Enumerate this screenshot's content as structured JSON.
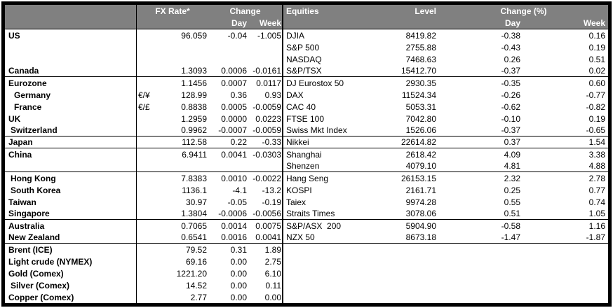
{
  "colors": {
    "header_bg": "#808080",
    "header_fg": "#ffffff",
    "border": "#000000"
  },
  "fx": {
    "header": {
      "rate": "FX Rate*",
      "change": "Change",
      "day": "Day",
      "week": "Week"
    },
    "rows": [
      {
        "label": "US",
        "sym": "",
        "rate": "96.059",
        "day": "-0.04",
        "week": "-1.005",
        "indent": 0,
        "end": false
      },
      {
        "label": "",
        "sym": "",
        "rate": "",
        "day": "",
        "week": "",
        "indent": 0,
        "end": false
      },
      {
        "label": "",
        "sym": "",
        "rate": "",
        "day": "",
        "week": "",
        "indent": 0,
        "end": false
      },
      {
        "label": "Canada",
        "sym": "",
        "rate": "1.3093",
        "day": "0.0006",
        "week": "-0.0161",
        "indent": 0,
        "end": true
      },
      {
        "label": "Eurozone",
        "sym": "",
        "rate": "1.1456",
        "day": "0.0007",
        "week": "0.0117",
        "indent": 0,
        "end": false
      },
      {
        "label": "Germany",
        "sym": "€/¥",
        "rate": "128.99",
        "day": "0.36",
        "week": "0.93",
        "indent": 1,
        "end": false
      },
      {
        "label": "France",
        "sym": "€/£",
        "rate": "0.8838",
        "day": "0.0005",
        "week": "-0.0059",
        "indent": 1,
        "end": false
      },
      {
        "label": "UK",
        "sym": "",
        "rate": "1.2959",
        "day": "0.0000",
        "week": "0.0223",
        "indent": 0,
        "end": false
      },
      {
        "label": "Switzerland",
        "sym": "",
        "rate": "0.9962",
        "day": "-0.0007",
        "week": "-0.0059",
        "indent": 0.5,
        "end": true
      },
      {
        "label": "Japan",
        "sym": "",
        "rate": "112.58",
        "day": "0.22",
        "week": "-0.33",
        "indent": 0,
        "end": true
      },
      {
        "label": "China",
        "sym": "",
        "rate": "6.9411",
        "day": "0.0041",
        "week": "-0.0303",
        "indent": 0,
        "end": false
      },
      {
        "label": "",
        "sym": "",
        "rate": "",
        "day": "",
        "week": "",
        "indent": 0,
        "end": true
      },
      {
        "label": "Hong Kong",
        "sym": "",
        "rate": "7.8383",
        "day": "0.0010",
        "week": "-0.0022",
        "indent": 0.5,
        "end": false
      },
      {
        "label": "South Korea",
        "sym": "",
        "rate": "1136.1",
        "day": "-4.1",
        "week": "-13.2",
        "indent": 0.5,
        "end": false
      },
      {
        "label": "Taiwan",
        "sym": "",
        "rate": "30.97",
        "day": "-0.05",
        "week": "-0.19",
        "indent": 0,
        "end": false
      },
      {
        "label": "Singapore",
        "sym": "",
        "rate": "1.3804",
        "day": "-0.0006",
        "week": "-0.0056",
        "indent": 0,
        "end": true
      },
      {
        "label": "Australia",
        "sym": "",
        "rate": "0.7065",
        "day": "0.0014",
        "week": "0.0075",
        "indent": 0,
        "end": false
      },
      {
        "label": "New Zealand",
        "sym": "",
        "rate": "0.6541",
        "day": "0.0016",
        "week": "0.0041",
        "indent": 0,
        "end": true
      },
      {
        "label": "Brent (ICE)",
        "sym": "",
        "rate": "79.52",
        "day": "0.31",
        "week": "1.89",
        "indent": 0,
        "end": false
      },
      {
        "label": "Light crude (NYMEX)",
        "sym": "",
        "rate": "69.16",
        "day": "0.00",
        "week": "2.75",
        "indent": 0,
        "end": false
      },
      {
        "label": "Gold (Comex)",
        "sym": "",
        "rate": "1221.20",
        "day": "0.00",
        "week": "6.10",
        "indent": 0,
        "end": false
      },
      {
        "label": "Silver (Comex)",
        "sym": "",
        "rate": "14.52",
        "day": "0.00",
        "week": "0.11",
        "indent": 0.5,
        "end": false
      },
      {
        "label": "Copper (Comex)",
        "sym": "",
        "rate": "2.77",
        "day": "0.00",
        "week": "0.00",
        "indent": 0,
        "end": false
      }
    ]
  },
  "equities": {
    "header": {
      "title": "Equities",
      "level": "Level",
      "change": "Change (%)",
      "day": "Day",
      "week": "Week"
    },
    "rows": [
      {
        "label": "DJIA",
        "level": "8419.82",
        "day": "-0.38",
        "week": "0.16",
        "end": false
      },
      {
        "label": "S&P 500",
        "level": "2755.88",
        "day": "-0.43",
        "week": "0.19",
        "end": false
      },
      {
        "label": "NASDAQ",
        "level": "7468.63",
        "day": "0.26",
        "week": "0.51",
        "end": false
      },
      {
        "label": "S&P/TSX",
        "level": "15412.70",
        "day": "-0.37",
        "week": "0.02",
        "end": true
      },
      {
        "label": "DJ Eurostox 50",
        "level": "2930.35",
        "day": "-0.35",
        "week": "0.60",
        "end": false
      },
      {
        "label": "DAX",
        "level": "11524.34",
        "day": "-0.26",
        "week": "-0.77",
        "end": false
      },
      {
        "label": "CAC 40",
        "level": "5053.31",
        "day": "-0.62",
        "week": "-0.82",
        "end": false
      },
      {
        "label": "FTSE 100",
        "level": "7042.80",
        "day": "-0.10",
        "week": "0.19",
        "end": false
      },
      {
        "label": "Swiss Mkt Index",
        "level": "1526.06",
        "day": "-0.37",
        "week": "-0.65",
        "end": true
      },
      {
        "label": "Nikkei",
        "level": "22614.82",
        "day": "0.37",
        "week": "1.54",
        "end": true
      },
      {
        "label": "Shanghai",
        "level": "2618.42",
        "day": "4.09",
        "week": "3.38",
        "end": false
      },
      {
        "label": "Shenzen",
        "level": "4079.10",
        "day": "4.81",
        "week": "4.88",
        "end": true
      },
      {
        "label": "Hang Seng",
        "level": "26153.15",
        "day": "2.32",
        "week": "2.78",
        "end": false
      },
      {
        "label": "KOSPI",
        "level": "2161.71",
        "day": "0.25",
        "week": "0.77",
        "end": false
      },
      {
        "label": "Taiex",
        "level": "9974.28",
        "day": "0.55",
        "week": "0.74",
        "end": false
      },
      {
        "label": "Straits Times",
        "level": "3078.06",
        "day": "0.51",
        "week": "1.05",
        "end": true
      },
      {
        "label": "S&P/ASX  200",
        "level": "5904.90",
        "day": "-0.58",
        "week": "1.16",
        "end": false
      },
      {
        "label": "NZX 50",
        "level": "8673.18",
        "day": "-1.47",
        "week": "-1.87",
        "end": true
      }
    ]
  }
}
